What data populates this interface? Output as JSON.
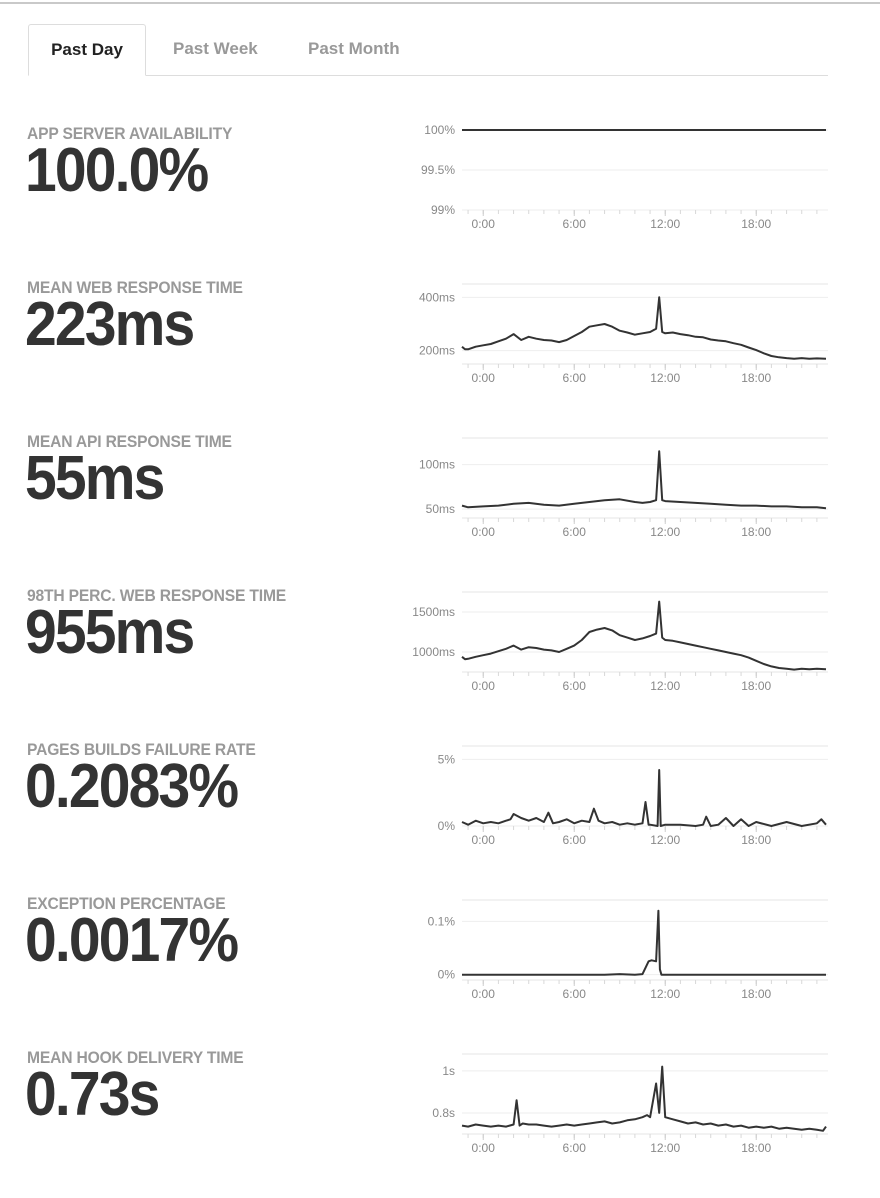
{
  "tabs": [
    {
      "label": "Past Day",
      "active": true
    },
    {
      "label": "Past Week",
      "active": false
    },
    {
      "label": "Past Month",
      "active": false
    }
  ],
  "metrics": [
    {
      "label": "APP SERVER AVAILABILITY",
      "value": "100.0%"
    },
    {
      "label": "MEAN WEB RESPONSE TIME",
      "value": "223ms"
    },
    {
      "label": "MEAN API RESPONSE TIME",
      "value": "55ms"
    },
    {
      "label": "98TH PERC. WEB RESPONSE TIME",
      "value": "955ms"
    },
    {
      "label": "PAGES BUILDS FAILURE RATE",
      "value": "0.2083%"
    },
    {
      "label": "EXCEPTION PERCENTAGE",
      "value": "0.0017%"
    },
    {
      "label": "MEAN HOOK DELIVERY TIME",
      "value": "0.73s"
    }
  ],
  "chart_data": [
    {
      "type": "line",
      "ylim": [
        99,
        100
      ],
      "y_ticks": [
        {
          "value": 100,
          "label": "100%"
        },
        {
          "value": 99.5,
          "label": "99.5%"
        },
        {
          "value": 99,
          "label": "99%"
        }
      ],
      "x_ticks": [
        {
          "hour": 0,
          "label": "0:00"
        },
        {
          "hour": 6,
          "label": "6:00"
        },
        {
          "hour": 12,
          "label": "12:00"
        },
        {
          "hour": 18,
          "label": "18:00"
        }
      ],
      "x_range_hours": [
        -1.4,
        22.6
      ],
      "grid": true,
      "series": [
        {
          "x": [
            -1.4,
            22.6
          ],
          "y": [
            100,
            100
          ]
        }
      ]
    },
    {
      "type": "line",
      "ylim": [
        150,
        450
      ],
      "y_ticks": [
        {
          "value": 400,
          "label": "400ms"
        },
        {
          "value": 200,
          "label": "200ms"
        }
      ],
      "x_ticks": [
        {
          "hour": 0,
          "label": "0:00"
        },
        {
          "hour": 6,
          "label": "6:00"
        },
        {
          "hour": 12,
          "label": "12:00"
        },
        {
          "hour": 18,
          "label": "18:00"
        }
      ],
      "x_range_hours": [
        -1.4,
        22.6
      ],
      "grid": true,
      "series": [
        {
          "x": [
            -1.4,
            -1.2,
            -1.0,
            -0.5,
            0,
            0.5,
            1,
            1.5,
            2,
            2.5,
            3,
            3.5,
            4,
            4.5,
            5,
            5.5,
            6,
            6.5,
            7,
            7.5,
            8,
            8.5,
            9,
            9.5,
            10,
            10.5,
            11,
            11.4,
            11.6,
            11.8,
            12,
            12.5,
            13,
            13.5,
            14,
            14.5,
            15,
            15.5,
            16,
            16.5,
            17,
            17.5,
            18,
            18.5,
            19,
            19.5,
            20,
            20.5,
            21,
            21.5,
            22,
            22.6
          ],
          "y": [
            215,
            205,
            205,
            215,
            220,
            225,
            235,
            245,
            262,
            240,
            252,
            245,
            240,
            238,
            232,
            240,
            255,
            270,
            290,
            295,
            300,
            290,
            275,
            268,
            260,
            265,
            270,
            282,
            400,
            270,
            265,
            268,
            262,
            258,
            252,
            250,
            242,
            238,
            235,
            228,
            222,
            212,
            202,
            190,
            180,
            175,
            172,
            170,
            172,
            170,
            171,
            170
          ]
        }
      ]
    },
    {
      "type": "line",
      "ylim": [
        40,
        130
      ],
      "y_ticks": [
        {
          "value": 100,
          "label": "100ms"
        },
        {
          "value": 50,
          "label": "50ms"
        }
      ],
      "x_ticks": [
        {
          "hour": 0,
          "label": "0:00"
        },
        {
          "hour": 6,
          "label": "6:00"
        },
        {
          "hour": 12,
          "label": "12:00"
        },
        {
          "hour": 18,
          "label": "18:00"
        }
      ],
      "x_range_hours": [
        -1.4,
        22.6
      ],
      "grid": true,
      "series": [
        {
          "x": [
            -1.4,
            -1,
            0,
            1,
            2,
            3,
            4,
            5,
            6,
            7,
            8,
            9,
            10,
            10.5,
            11,
            11.4,
            11.6,
            11.8,
            12,
            13,
            14,
            15,
            16,
            17,
            18,
            19,
            20,
            21,
            22,
            22.6
          ],
          "y": [
            54,
            52,
            53,
            54,
            56,
            57,
            55,
            54,
            56,
            58,
            60,
            61,
            58,
            57,
            58,
            60,
            115,
            60,
            59,
            58,
            57,
            56,
            55,
            54,
            54,
            53,
            53,
            52,
            52,
            51
          ]
        }
      ]
    },
    {
      "type": "line",
      "ylim": [
        750,
        1750
      ],
      "y_ticks": [
        {
          "value": 1500,
          "label": "1500ms"
        },
        {
          "value": 1000,
          "label": "1000ms"
        }
      ],
      "x_ticks": [
        {
          "hour": 0,
          "label": "0:00"
        },
        {
          "hour": 6,
          "label": "6:00"
        },
        {
          "hour": 12,
          "label": "12:00"
        },
        {
          "hour": 18,
          "label": "18:00"
        }
      ],
      "x_range_hours": [
        -1.4,
        22.6
      ],
      "grid": true,
      "series": [
        {
          "x": [
            -1.4,
            -1.2,
            -1.0,
            -0.5,
            0,
            0.5,
            1,
            1.5,
            2,
            2.5,
            3,
            3.5,
            4,
            4.5,
            5,
            5.5,
            6,
            6.5,
            7,
            7.5,
            8,
            8.5,
            9,
            9.5,
            10,
            10.5,
            11,
            11.4,
            11.6,
            11.8,
            12,
            12.5,
            13,
            13.5,
            14,
            14.5,
            15,
            15.5,
            16,
            16.5,
            17,
            17.5,
            18,
            18.5,
            19,
            19.5,
            20,
            20.5,
            21,
            21.5,
            22,
            22.6
          ],
          "y": [
            940,
            910,
            915,
            940,
            960,
            980,
            1010,
            1040,
            1080,
            1030,
            1060,
            1050,
            1030,
            1020,
            1000,
            1040,
            1080,
            1150,
            1250,
            1280,
            1300,
            1270,
            1210,
            1180,
            1150,
            1170,
            1200,
            1230,
            1630,
            1180,
            1150,
            1140,
            1120,
            1100,
            1080,
            1060,
            1040,
            1020,
            1000,
            980,
            960,
            930,
            890,
            850,
            820,
            800,
            790,
            780,
            790,
            785,
            790,
            785
          ]
        }
      ]
    },
    {
      "type": "line",
      "ylim": [
        0,
        6
      ],
      "y_ticks": [
        {
          "value": 5,
          "label": "5%"
        },
        {
          "value": 0,
          "label": "0%"
        }
      ],
      "x_ticks": [
        {
          "hour": 0,
          "label": "0:00"
        },
        {
          "hour": 6,
          "label": "6:00"
        },
        {
          "hour": 12,
          "label": "12:00"
        },
        {
          "hour": 18,
          "label": "18:00"
        }
      ],
      "x_range_hours": [
        -1.4,
        22.6
      ],
      "grid": true,
      "series": [
        {
          "x": [
            -1.4,
            -1,
            -0.5,
            0,
            0.5,
            1,
            1.5,
            1.8,
            2,
            2.5,
            3,
            3.5,
            4,
            4.3,
            4.6,
            5,
            5.5,
            6,
            6.5,
            7,
            7.3,
            7.6,
            8,
            8.5,
            9,
            9.5,
            10,
            10.5,
            10.7,
            10.9,
            11,
            11.5,
            11.6,
            11.7,
            12,
            13,
            14,
            14.5,
            14.7,
            15,
            15.5,
            16,
            16.5,
            17,
            17.5,
            18,
            19,
            20,
            21,
            22,
            22.3,
            22.6
          ],
          "y": [
            0.3,
            0.1,
            0.4,
            0.2,
            0.3,
            0.2,
            0.4,
            0.5,
            0.9,
            0.6,
            0.4,
            0.6,
            0.3,
            1.0,
            0.2,
            0.3,
            0.5,
            0.2,
            0.4,
            0.3,
            1.3,
            0.4,
            0.2,
            0.3,
            0.1,
            0.2,
            0.1,
            0.2,
            1.8,
            0.1,
            0.1,
            0.0,
            4.2,
            0.0,
            0.1,
            0.1,
            0.0,
            0.1,
            0.7,
            0.0,
            0.1,
            0.6,
            0.0,
            0.5,
            0.0,
            0.3,
            0.0,
            0.3,
            0.0,
            0.2,
            0.5,
            0.1
          ]
        }
      ]
    },
    {
      "type": "line",
      "ylim": [
        -0.01,
        0.14
      ],
      "y_ticks": [
        {
          "value": 0.1,
          "label": "0.1%"
        },
        {
          "value": 0,
          "label": "0%"
        }
      ],
      "x_ticks": [
        {
          "hour": 0,
          "label": "0:00"
        },
        {
          "hour": 6,
          "label": "6:00"
        },
        {
          "hour": 12,
          "label": "12:00"
        },
        {
          "hour": 18,
          "label": "18:00"
        }
      ],
      "x_range_hours": [
        -1.4,
        22.6
      ],
      "grid": true,
      "series": [
        {
          "x": [
            -1.4,
            0,
            2,
            4,
            6,
            8,
            9,
            10,
            10.5,
            10.9,
            11.1,
            11.4,
            11.55,
            11.65,
            11.75,
            11.9,
            12.5,
            14,
            16,
            18,
            20,
            22,
            22.6
          ],
          "y": [
            0,
            0,
            0,
            0,
            0,
            0,
            0.001,
            0,
            0.001,
            0.025,
            0.027,
            0.025,
            0.12,
            0.01,
            0,
            0,
            0,
            0,
            0,
            0,
            0,
            0,
            0
          ]
        }
      ]
    },
    {
      "type": "line",
      "ylim": [
        0.7,
        1.08
      ],
      "y_ticks": [
        {
          "value": 1,
          "label": "1s"
        },
        {
          "value": 0.8,
          "label": "0.8s"
        }
      ],
      "x_ticks": [
        {
          "hour": 0,
          "label": "0:00"
        },
        {
          "hour": 6,
          "label": "6:00"
        },
        {
          "hour": 12,
          "label": "12:00"
        },
        {
          "hour": 18,
          "label": "18:00"
        }
      ],
      "x_range_hours": [
        -1.4,
        22.6
      ],
      "grid": true,
      "series": [
        {
          "x": [
            -1.4,
            -1,
            -0.5,
            0,
            0.5,
            1,
            1.5,
            2,
            2.2,
            2.4,
            2.6,
            3,
            3.5,
            4,
            4.5,
            5,
            5.5,
            6,
            6.5,
            7,
            7.5,
            8,
            8.5,
            9,
            9.5,
            10,
            10.5,
            10.8,
            11,
            11.4,
            11.6,
            11.8,
            12,
            12.5,
            13,
            13.5,
            14,
            14.5,
            15,
            15.5,
            16,
            16.5,
            17,
            17.5,
            18,
            18.5,
            19,
            19.5,
            20,
            20.5,
            21,
            21.5,
            22,
            22.4,
            22.6
          ],
          "y": [
            0.74,
            0.735,
            0.745,
            0.74,
            0.735,
            0.74,
            0.735,
            0.745,
            0.86,
            0.74,
            0.75,
            0.745,
            0.745,
            0.74,
            0.735,
            0.74,
            0.745,
            0.74,
            0.745,
            0.75,
            0.755,
            0.76,
            0.75,
            0.755,
            0.765,
            0.77,
            0.78,
            0.79,
            0.78,
            0.94,
            0.8,
            1.02,
            0.78,
            0.77,
            0.76,
            0.75,
            0.755,
            0.745,
            0.75,
            0.74,
            0.745,
            0.735,
            0.74,
            0.73,
            0.735,
            0.73,
            0.735,
            0.725,
            0.73,
            0.725,
            0.72,
            0.725,
            0.72,
            0.715,
            0.735
          ]
        }
      ]
    }
  ]
}
